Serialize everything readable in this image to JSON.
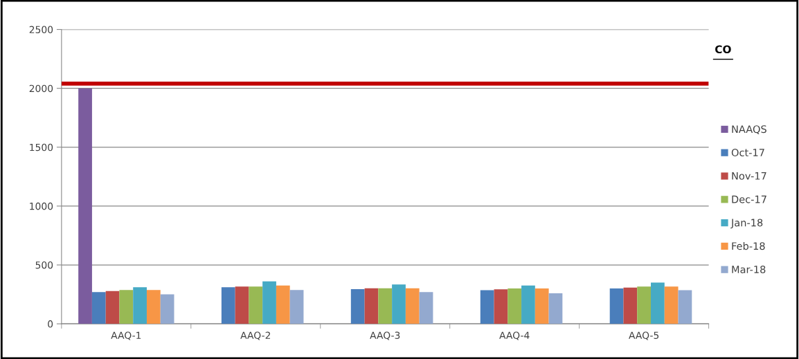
{
  "chart_data": {
    "type": "bar",
    "categories": [
      "AAQ-1",
      "AAQ-2",
      "AAQ-3",
      "AAQ-4",
      "AAQ-5"
    ],
    "series": [
      {
        "name": "NAAQS",
        "color": "#7b5c9e",
        "values": [
          2000,
          null,
          null,
          null,
          null
        ]
      },
      {
        "name": "Oct-17",
        "color": "#4a7ebb",
        "values": [
          269,
          310,
          295,
          285,
          300
        ]
      },
      {
        "name": "Nov-17",
        "color": "#be4b48",
        "values": [
          279,
          316,
          302,
          293,
          308
        ]
      },
      {
        "name": "Dec-17",
        "color": "#98b954",
        "values": [
          287,
          316,
          302,
          300,
          316
        ]
      },
      {
        "name": "Jan-18",
        "color": "#46aac5",
        "values": [
          310,
          360,
          334,
          326,
          350
        ]
      },
      {
        "name": "Feb-18",
        "color": "#f79646",
        "values": [
          287,
          326,
          302,
          300,
          316
        ]
      },
      {
        "name": "Mar-18",
        "color": "#93a9cf",
        "values": [
          251,
          287,
          269,
          259,
          285
        ]
      }
    ],
    "ylim": [
      0,
      2500
    ],
    "yticks": [
      0,
      500,
      1000,
      1500,
      2000,
      2500
    ],
    "grid": "y",
    "legend": "right",
    "ref_lines": [
      {
        "axis": "y",
        "value": 2040,
        "color": "#c00000",
        "line_style": "solid"
      }
    ],
    "annotations": [
      "CO"
    ]
  }
}
